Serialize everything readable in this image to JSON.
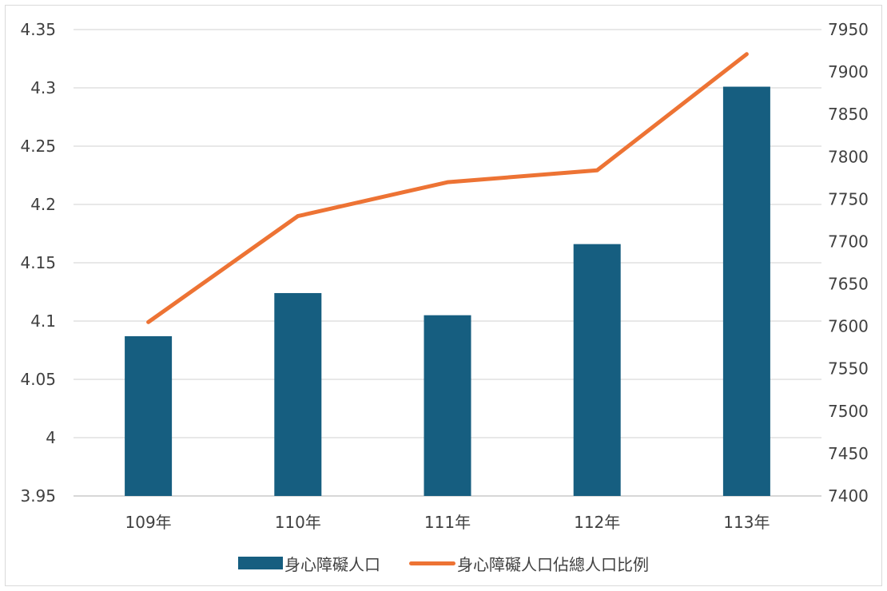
{
  "chart_data": {
    "type": "bar",
    "categories": [
      "109年",
      "110年",
      "111年",
      "112年",
      "113年"
    ],
    "series": [
      {
        "name": "身心障礙人口",
        "type": "bar",
        "axis": "left",
        "color": "#165e80",
        "values": [
          4.087,
          4.124,
          4.105,
          4.166,
          4.301
        ]
      },
      {
        "name": "身心障礙人口佔總人口比例",
        "type": "line",
        "axis": "right",
        "color": "#ed7334",
        "values": [
          7605,
          7730,
          7770,
          7784,
          7921
        ]
      }
    ],
    "y_left": {
      "ylim": [
        3.95,
        4.35
      ],
      "ticks": [
        "3.95",
        "4",
        "4.05",
        "4.1",
        "4.15",
        "4.2",
        "4.25",
        "4.3",
        "4.35"
      ]
    },
    "y_right": {
      "ylim": [
        7400,
        7950
      ],
      "ticks": [
        "7400",
        "7450",
        "7500",
        "7550",
        "7600",
        "7650",
        "7700",
        "7750",
        "7800",
        "7850",
        "7900",
        "7950"
      ]
    },
    "grid": true,
    "legend_position": "bottom"
  }
}
